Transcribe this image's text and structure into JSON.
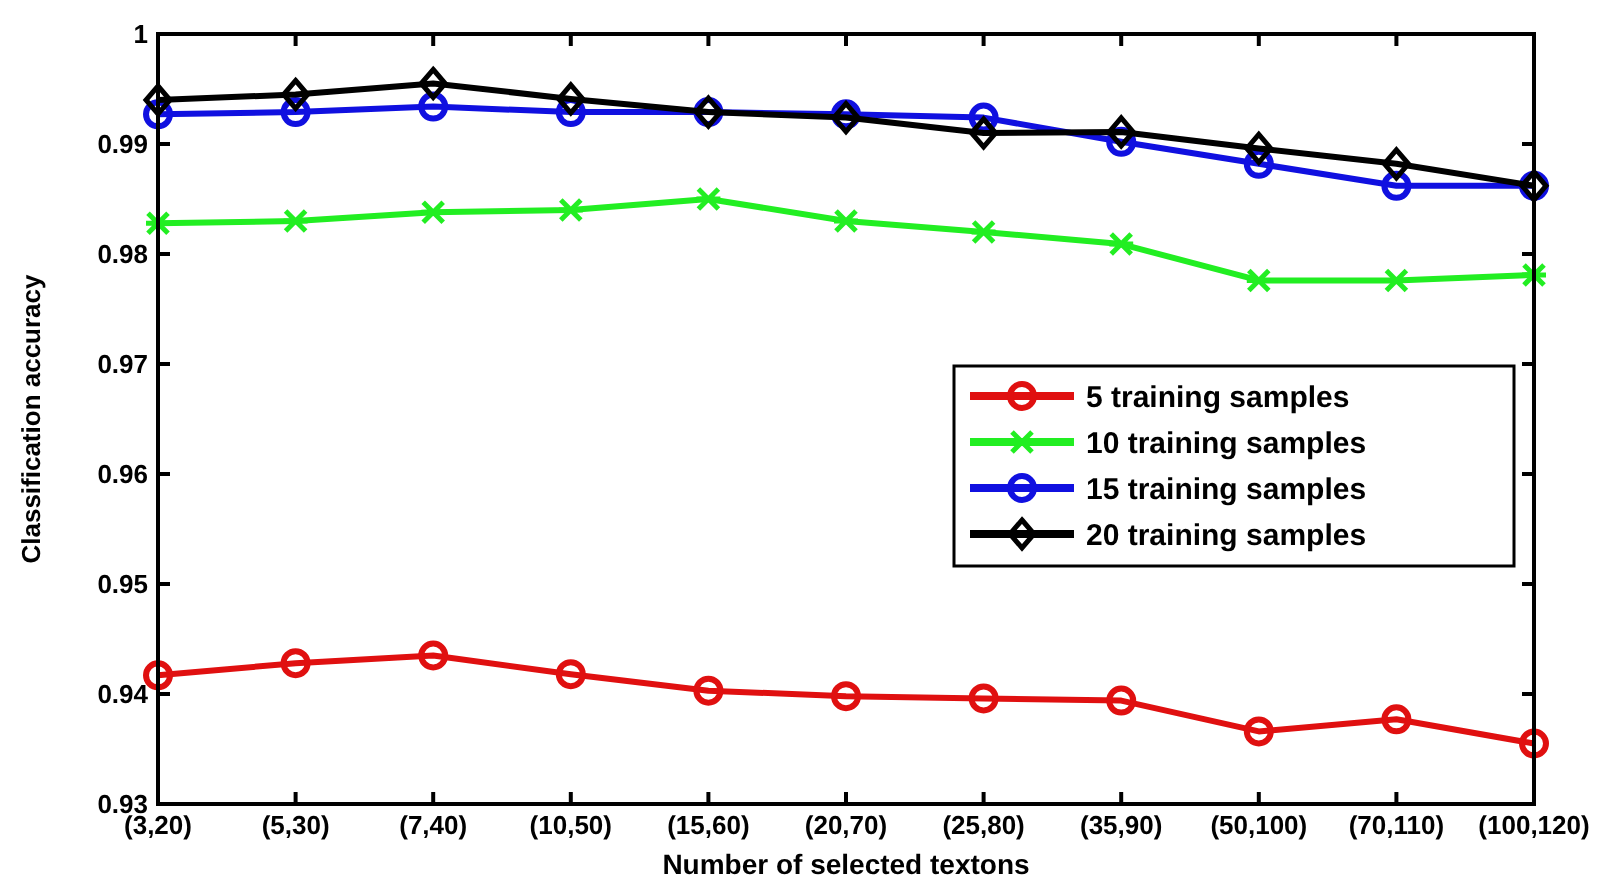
{
  "chart_data": {
    "type": "line",
    "xlabel": "Number of selected textons",
    "ylabel": "Classification accuracy",
    "categories": [
      "(3,20)",
      "(5,30)",
      "(7,40)",
      "(10,50)",
      "(15,60)",
      "(20,70)",
      "(25,80)",
      "(35,90)",
      "(50,100)",
      "(70,110)",
      "(100,120)"
    ],
    "ylim": [
      0.93,
      1
    ],
    "yticks": [
      0.93,
      0.94,
      0.95,
      0.96,
      0.97,
      0.98,
      0.99,
      1
    ],
    "legend": "right",
    "grid": false,
    "line_style": "solid",
    "series": [
      {
        "name": "5 training samples",
        "color": "#e01010",
        "marker": "circle",
        "values": [
          0.9417,
          0.9428,
          0.9435,
          0.9418,
          0.9403,
          0.9398,
          0.9396,
          0.9394,
          0.9366,
          0.9377,
          0.9355
        ]
      },
      {
        "name": "10 training samples",
        "color": "#22ee22",
        "marker": "cross",
        "values": [
          0.9828,
          0.983,
          0.9838,
          0.984,
          0.985,
          0.983,
          0.982,
          0.9809,
          0.9776,
          0.9776,
          0.9781
        ]
      },
      {
        "name": "15 training samples",
        "color": "#1010e0",
        "marker": "circle",
        "values": [
          0.9927,
          0.9929,
          0.9934,
          0.9929,
          0.9929,
          0.9927,
          0.9924,
          0.9902,
          0.9882,
          0.9862,
          0.9862
        ]
      },
      {
        "name": "20 training samples",
        "color": "#000000",
        "marker": "diamond",
        "values": [
          0.994,
          0.9945,
          0.9955,
          0.9941,
          0.9929,
          0.9924,
          0.991,
          0.9911,
          0.9896,
          0.9882,
          0.9862
        ]
      }
    ]
  }
}
